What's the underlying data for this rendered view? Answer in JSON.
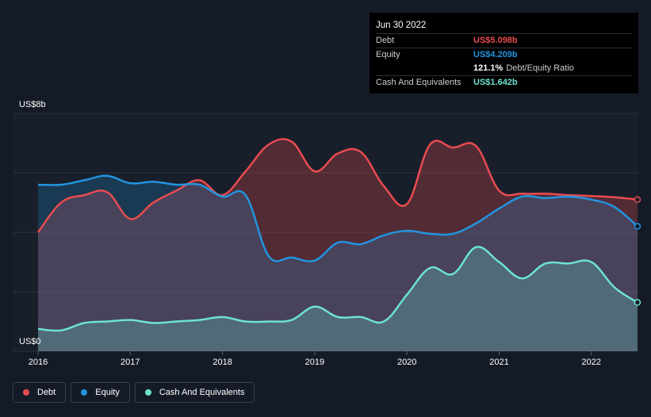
{
  "tooltip": {
    "date": "Jun 30 2022",
    "debt_label": "Debt",
    "debt_value": "US$5.098b",
    "equity_label": "Equity",
    "equity_value": "US$4.209b",
    "ratio_value": "121.1%",
    "ratio_label": "Debt/Equity Ratio",
    "cash_label": "Cash And Equivalents",
    "cash_value": "US$1.642b"
  },
  "legend": {
    "debt": "Debt",
    "equity": "Equity",
    "cash": "Cash And Equivalents"
  },
  "colors": {
    "debt": "#e84b4f",
    "equity": "#2394df",
    "cash": "#6de2d0",
    "background": "#151b26"
  },
  "chart_data": {
    "type": "area",
    "ylabel_top": "US$8b",
    "ylabel_bottom": "US$0",
    "ylim": [
      0,
      8
    ],
    "xlim": [
      2016.0,
      2022.5
    ],
    "x_ticks": [
      "2016",
      "2017",
      "2018",
      "2019",
      "2020",
      "2021",
      "2022"
    ],
    "grid": true,
    "legend_position": "bottom-left",
    "series": [
      {
        "name": "Debt",
        "key": "debt",
        "x": [
          2016.0,
          2016.25,
          2016.5,
          2016.75,
          2017.0,
          2017.25,
          2017.5,
          2017.75,
          2018.0,
          2018.25,
          2018.5,
          2018.75,
          2019.0,
          2019.25,
          2019.5,
          2019.75,
          2020.0,
          2020.25,
          2020.5,
          2020.75,
          2021.0,
          2021.25,
          2021.5,
          2021.75,
          2022.0,
          2022.25,
          2022.5
        ],
        "values": [
          4.0,
          5.0,
          5.25,
          5.35,
          4.45,
          5.0,
          5.4,
          5.75,
          5.25,
          6.05,
          6.95,
          7.05,
          6.05,
          6.65,
          6.7,
          5.55,
          4.95,
          6.95,
          6.85,
          6.9,
          5.4,
          5.3,
          5.3,
          5.25,
          5.22,
          5.18,
          5.1
        ]
      },
      {
        "name": "Equity",
        "key": "equity",
        "x": [
          2016.0,
          2016.25,
          2016.5,
          2016.75,
          2017.0,
          2017.25,
          2017.5,
          2017.75,
          2018.0,
          2018.25,
          2018.5,
          2018.75,
          2019.0,
          2019.25,
          2019.5,
          2019.75,
          2020.0,
          2020.25,
          2020.5,
          2020.75,
          2021.0,
          2021.25,
          2021.5,
          2021.75,
          2022.0,
          2022.25,
          2022.5
        ],
        "values": [
          5.6,
          5.6,
          5.75,
          5.9,
          5.65,
          5.7,
          5.6,
          5.6,
          5.2,
          5.25,
          3.2,
          3.15,
          3.05,
          3.65,
          3.6,
          3.9,
          4.05,
          3.95,
          3.95,
          4.3,
          4.8,
          5.2,
          5.15,
          5.2,
          5.1,
          4.85,
          4.2
        ]
      },
      {
        "name": "Cash And Equivalents",
        "key": "cash",
        "x": [
          2016.0,
          2016.25,
          2016.5,
          2016.75,
          2017.0,
          2017.25,
          2017.5,
          2017.75,
          2018.0,
          2018.25,
          2018.5,
          2018.75,
          2019.0,
          2019.25,
          2019.5,
          2019.75,
          2020.0,
          2020.25,
          2020.5,
          2020.75,
          2021.0,
          2021.25,
          2021.5,
          2021.75,
          2022.0,
          2022.25,
          2022.5
        ],
        "values": [
          0.75,
          0.7,
          0.95,
          1.0,
          1.05,
          0.95,
          1.0,
          1.05,
          1.15,
          1.0,
          1.0,
          1.05,
          1.5,
          1.15,
          1.15,
          1.0,
          1.9,
          2.8,
          2.6,
          3.5,
          3.0,
          2.45,
          2.95,
          2.95,
          3.0,
          2.15,
          1.64
        ]
      }
    ]
  }
}
